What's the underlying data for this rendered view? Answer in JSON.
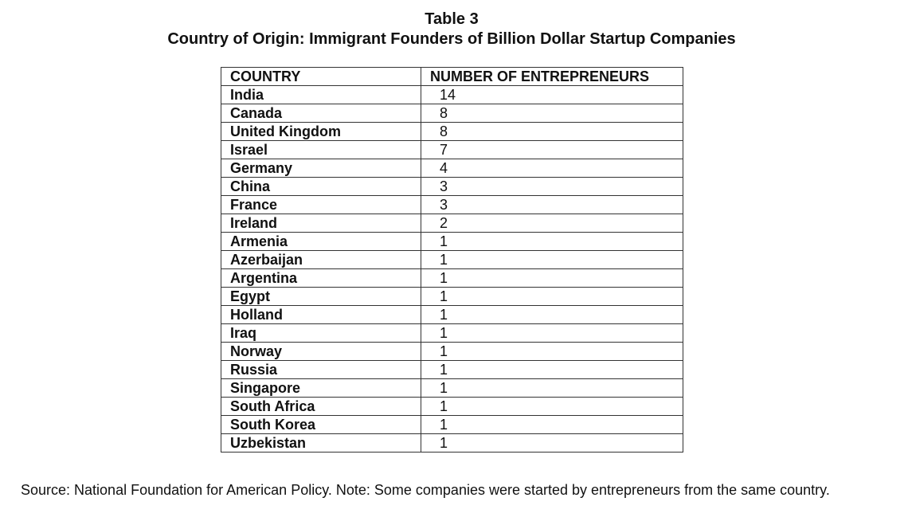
{
  "header": {
    "table_number": "Table 3",
    "title": "Country of Origin: Immigrant Founders of Billion Dollar Startup Companies"
  },
  "table": {
    "columns": [
      "COUNTRY",
      "NUMBER OF ENTREPRENEURS"
    ],
    "rows": [
      {
        "country": "India",
        "count": "14"
      },
      {
        "country": "Canada",
        "count": "8"
      },
      {
        "country": "United Kingdom",
        "count": "8"
      },
      {
        "country": "Israel",
        "count": "7"
      },
      {
        "country": "Germany",
        "count": "4"
      },
      {
        "country": "China",
        "count": "3"
      },
      {
        "country": "France",
        "count": "3"
      },
      {
        "country": "Ireland",
        "count": "2"
      },
      {
        "country": "Armenia",
        "count": "1"
      },
      {
        "country": "Azerbaijan",
        "count": "1"
      },
      {
        "country": "Argentina",
        "count": "1"
      },
      {
        "country": "Egypt",
        "count": "1"
      },
      {
        "country": "Holland",
        "count": "1"
      },
      {
        "country": "Iraq",
        "count": "1"
      },
      {
        "country": "Norway",
        "count": "1"
      },
      {
        "country": "Russia",
        "count": "1"
      },
      {
        "country": "Singapore",
        "count": "1"
      },
      {
        "country": "South Africa",
        "count": "1"
      },
      {
        "country": "South Korea",
        "count": "1"
      },
      {
        "country": "Uzbekistan",
        "count": "1"
      }
    ]
  },
  "footer": {
    "source": "Source: National Foundation for American Policy. Note: Some companies were started by entrepreneurs from the same country."
  }
}
